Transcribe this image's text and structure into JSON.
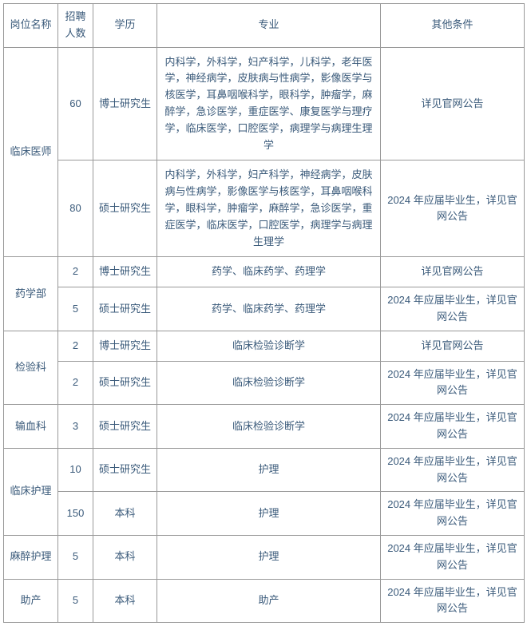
{
  "table": {
    "headers": {
      "position": "岗位名称",
      "count": "招聘人数",
      "education": "学历",
      "major": "专业",
      "other": "其他条件"
    },
    "rows": [
      {
        "position": "临床医师",
        "positionRowspan": 2,
        "count": "60",
        "education": "博士研究生",
        "major": "内科学，外科学，妇产科学，儿科学，老年医学，神经病学，皮肤病与性病学，影像医学与核医学，耳鼻咽喉科学，眼科学，肿瘤学，麻醉学，急诊医学，重症医学、康复医学与理疗学，临床医学，口腔医学，病理学与病理生理学",
        "other": "详见官网公告"
      },
      {
        "position": "",
        "count": "80",
        "education": "硕士研究生",
        "major": "内科学，外科学，妇产科学，神经病学，皮肤病与性病学，影像医学与核医学，耳鼻咽喉科学，眼科学，肿瘤学，麻醉学，急诊医学，重症医学，临床医学，口腔医学，病理学与病理生理学",
        "other": "2024 年应届毕业生，详见官网公告"
      },
      {
        "position": "药学部",
        "positionRowspan": 2,
        "count": "2",
        "education": "博士研究生",
        "major": "药学、临床药学、药理学",
        "other": "详见官网公告"
      },
      {
        "position": "",
        "count": "5",
        "education": "硕士研究生",
        "major": "药学、临床药学、药理学",
        "other": "2024 年应届毕业生，详见官网公告"
      },
      {
        "position": "检验科",
        "positionRowspan": 2,
        "count": "2",
        "education": "博士研究生",
        "major": "临床检验诊断学",
        "other": "详见官网公告"
      },
      {
        "position": "",
        "count": "2",
        "education": "硕士研究生",
        "major": "临床检验诊断学",
        "other": "2024 年应届毕业生，详见官网公告"
      },
      {
        "position": "输血科",
        "positionRowspan": 1,
        "count": "3",
        "education": "硕士研究生",
        "major": "临床检验诊断学",
        "other": "2024 年应届毕业生，详见官网公告"
      },
      {
        "position": "临床护理",
        "positionRowspan": 2,
        "count": "10",
        "education": "硕士研究生",
        "major": "护理",
        "other": "2024 年应届毕业生，详见官网公告"
      },
      {
        "position": "",
        "count": "150",
        "education": "本科",
        "major": "护理",
        "other": "2024 年应届毕业生，详见官网公告"
      },
      {
        "position": "麻醉护理",
        "positionRowspan": 1,
        "count": "5",
        "education": "本科",
        "major": "护理",
        "other": "2024 年应届毕业生，详见官网公告"
      },
      {
        "position": "助产",
        "positionRowspan": 1,
        "count": "5",
        "education": "本科",
        "major": "助产",
        "other": "2024 年应届毕业生，详见官网公告"
      }
    ]
  },
  "styling": {
    "border_color": "#999999",
    "text_color": "#3a5a7a",
    "font_size": 13,
    "background_color": "#ffffff"
  }
}
